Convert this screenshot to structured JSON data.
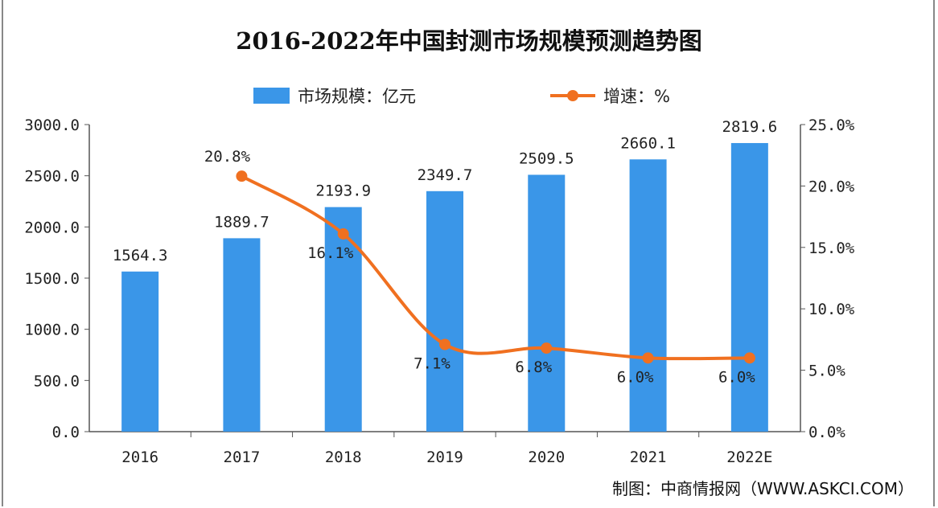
{
  "chart_data": {
    "type": "bar+line",
    "title": "2016-2022年中国封测市场规模预测趋势图",
    "categories": [
      "2016",
      "2017",
      "2018",
      "2019",
      "2020",
      "2021",
      "2022E"
    ],
    "series": [
      {
        "name": "市场规模：亿元",
        "type": "bar",
        "axis": "left",
        "color": "#3a96e8",
        "values": [
          1564.3,
          1889.7,
          2193.9,
          2349.7,
          2509.5,
          2660.1,
          2819.6
        ],
        "labels": [
          "1564.3",
          "1889.7",
          "2193.9",
          "2349.7",
          "2509.5",
          "2660.1",
          "2819.6"
        ]
      },
      {
        "name": "增速：%",
        "type": "line",
        "axis": "right",
        "color": "#f07020",
        "values": [
          null,
          20.8,
          16.1,
          7.1,
          6.8,
          6.0,
          6.0
        ],
        "labels": [
          "",
          "20.8%",
          "16.1%",
          "7.1%",
          "6.8%",
          "6.0%",
          "6.0%"
        ]
      }
    ],
    "y_left": {
      "range": [
        0,
        3000
      ],
      "ticks": [
        "0.0",
        "500.0",
        "1000.0",
        "1500.0",
        "2000.0",
        "2500.0",
        "3000.0"
      ]
    },
    "y_right": {
      "range": [
        0,
        25
      ],
      "ticks": [
        "0.0%",
        "5.0%",
        "10.0%",
        "15.0%",
        "20.0%",
        "25.0%"
      ]
    },
    "grid": false,
    "legend": "top"
  },
  "source": "制图：中商情报网（WWW.ASKCI.COM）"
}
